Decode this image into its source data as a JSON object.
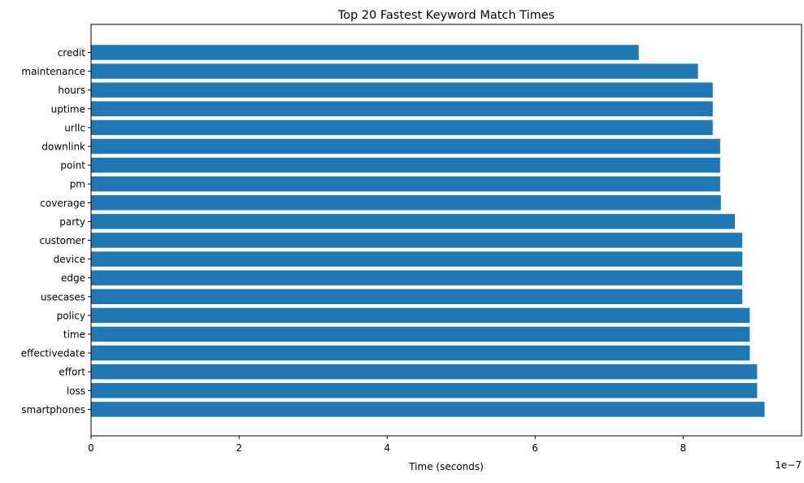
{
  "chart_data": {
    "type": "bar",
    "orientation": "horizontal",
    "title": "Top 20 Fastest Keyword Match Times",
    "xlabel": "Time (seconds)",
    "ylabel": "",
    "x_scale_label": "1e−7",
    "xlim": [
      0,
      9.6
    ],
    "x_ticks": [
      0,
      2,
      4,
      6,
      8
    ],
    "x_tick_labels": [
      "0",
      "2",
      "4",
      "6",
      "8"
    ],
    "grid": false,
    "legend": "none",
    "bar_color": "#1f77b4",
    "categories": [
      "credit",
      "maintenance",
      "hours",
      "uptime",
      "urllc",
      "downlink",
      "point",
      "pm",
      "coverage",
      "party",
      "customer",
      "device",
      "edge",
      "usecases",
      "policy",
      "time",
      "effectivedate",
      "effort",
      "loss",
      "smartphones"
    ],
    "values": [
      7.4,
      8.2,
      8.4,
      8.4,
      8.4,
      8.5,
      8.5,
      8.5,
      8.51,
      8.7,
      8.8,
      8.8,
      8.8,
      8.8,
      8.9,
      8.9,
      8.9,
      9.0,
      9.0,
      9.1
    ]
  }
}
